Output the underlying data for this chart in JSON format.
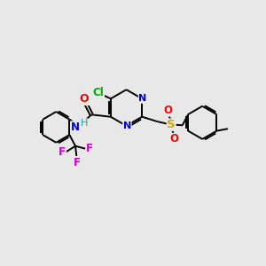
{
  "background_color": "#e8e8e8",
  "figure_size": [
    3.0,
    3.0
  ],
  "dpi": 100,
  "bond_color": "#000000",
  "bond_lw": 1.4,
  "dbo": 0.012,
  "atom_colors": {
    "C": "#000000",
    "N": "#0000cc",
    "O": "#ff0000",
    "S": "#ccaa00",
    "Cl": "#00aa00",
    "F": "#cc00cc",
    "H": "#555555"
  }
}
